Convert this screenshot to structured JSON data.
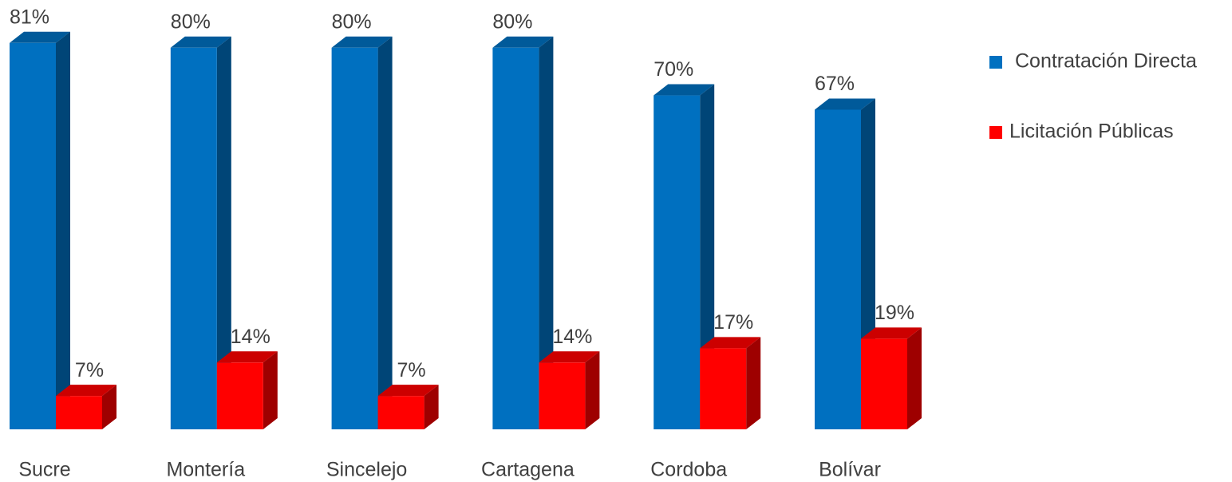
{
  "chart_data": {
    "type": "bar3d",
    "categories": [
      "Sucre",
      "Montería",
      "Sincelejo",
      "Cartagena",
      "Cordoba",
      "Bolívar"
    ],
    "series": [
      {
        "name": "Contratación Directa",
        "color": "#0070c0",
        "values": [
          81,
          80,
          80,
          80,
          70,
          67
        ],
        "value_labels": [
          "81%",
          "80%",
          "80%",
          "80%",
          "70%",
          "67%"
        ]
      },
      {
        "name": "Licitación Públicas",
        "color": "#ff0000",
        "values": [
          7,
          14,
          7,
          14,
          17,
          19
        ],
        "value_labels": [
          "7%",
          "14%",
          "7%",
          "14%",
          "17%",
          "19%"
        ]
      }
    ],
    "ylim": [
      0,
      90
    ],
    "legend": "right"
  }
}
